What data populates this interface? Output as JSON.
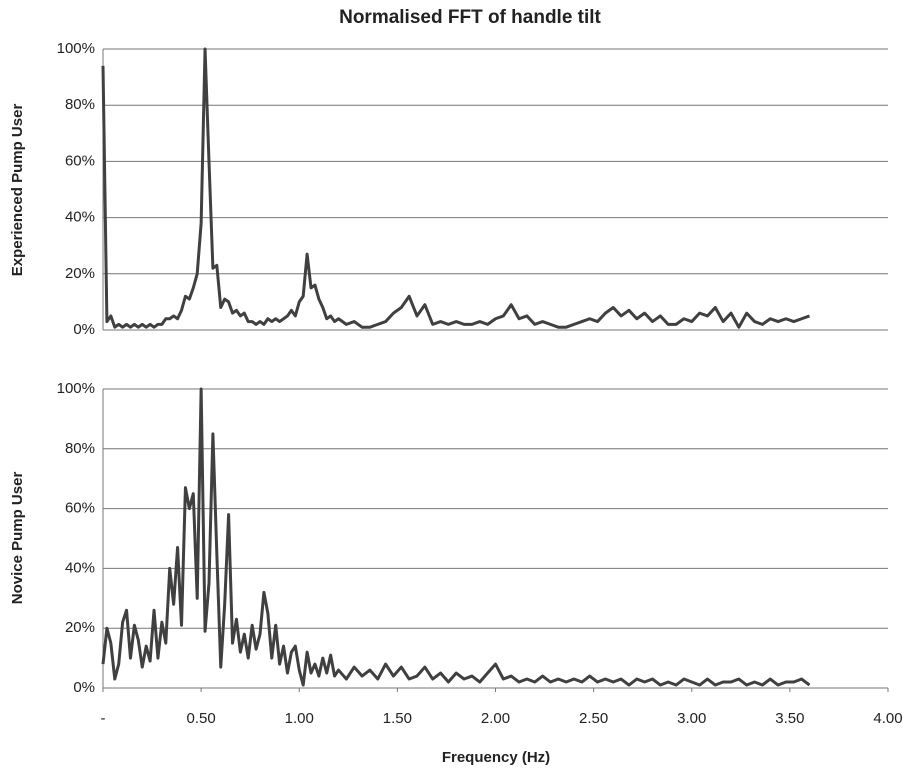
{
  "chart_data": [
    {
      "type": "line",
      "title": "Normalised FFT of handle tilt",
      "y_label": "Experienced Pump User",
      "color": "#404040",
      "grid": true,
      "xlim": [
        0,
        4
      ],
      "ylim": [
        0,
        100
      ],
      "yticks": [
        {
          "value": 0,
          "label": "0%"
        },
        {
          "value": 20,
          "label": "20%"
        },
        {
          "value": 40,
          "label": "40%"
        },
        {
          "value": 60,
          "label": "60%"
        },
        {
          "value": 80,
          "label": "80%"
        },
        {
          "value": 100,
          "label": "100%"
        }
      ],
      "x": [
        0,
        0.02,
        0.04,
        0.06,
        0.08,
        0.1,
        0.12,
        0.14,
        0.16,
        0.18,
        0.2,
        0.22,
        0.24,
        0.26,
        0.28,
        0.3,
        0.32,
        0.34,
        0.36,
        0.38,
        0.4,
        0.42,
        0.44,
        0.46,
        0.48,
        0.5,
        0.52,
        0.54,
        0.56,
        0.58,
        0.6,
        0.62,
        0.64,
        0.66,
        0.68,
        0.7,
        0.72,
        0.74,
        0.76,
        0.78,
        0.8,
        0.82,
        0.84,
        0.86,
        0.88,
        0.9,
        0.92,
        0.94,
        0.96,
        0.98,
        1.0,
        1.02,
        1.04,
        1.06,
        1.08,
        1.1,
        1.12,
        1.14,
        1.16,
        1.18,
        1.2,
        1.24,
        1.28,
        1.32,
        1.36,
        1.4,
        1.44,
        1.48,
        1.52,
        1.56,
        1.6,
        1.64,
        1.68,
        1.72,
        1.76,
        1.8,
        1.84,
        1.88,
        1.92,
        1.96,
        2.0,
        2.04,
        2.08,
        2.12,
        2.16,
        2.2,
        2.24,
        2.28,
        2.32,
        2.36,
        2.4,
        2.44,
        2.48,
        2.52,
        2.56,
        2.6,
        2.64,
        2.68,
        2.72,
        2.76,
        2.8,
        2.84,
        2.88,
        2.92,
        2.96,
        3.0,
        3.04,
        3.08,
        3.12,
        3.16,
        3.2,
        3.24,
        3.28,
        3.32,
        3.36,
        3.4,
        3.44,
        3.48,
        3.52,
        3.56,
        3.6
      ],
      "values": [
        94,
        3,
        5,
        1,
        2,
        1,
        2,
        1,
        2,
        1,
        2,
        1,
        2,
        1,
        2,
        2,
        4,
        4,
        5,
        4,
        7,
        12,
        11,
        15,
        20,
        38,
        100,
        60,
        22,
        23,
        8,
        11,
        10,
        6,
        7,
        5,
        6,
        3,
        3,
        2,
        3,
        2,
        4,
        3,
        4,
        3,
        4,
        5,
        7,
        5,
        10,
        12,
        27,
        15,
        16,
        11,
        8,
        4,
        5,
        3,
        4,
        2,
        3,
        1,
        1,
        2,
        3,
        6,
        8,
        12,
        5,
        9,
        2,
        3,
        2,
        3,
        2,
        2,
        3,
        2,
        4,
        5,
        9,
        4,
        5,
        2,
        3,
        2,
        1,
        1,
        2,
        3,
        4,
        3,
        6,
        8,
        5,
        7,
        4,
        6,
        3,
        5,
        2,
        2,
        4,
        3,
        6,
        5,
        8,
        3,
        6,
        1,
        6,
        3,
        2,
        4,
        3,
        4,
        3,
        4,
        5
      ]
    },
    {
      "type": "line",
      "y_label": "Novice Pump User",
      "x_label": "Frequency (Hz)",
      "color": "#404040",
      "grid": true,
      "xlim": [
        0,
        4
      ],
      "ylim": [
        0,
        100
      ],
      "xticks": [
        {
          "value": 0,
          "label": "-"
        },
        {
          "value": 0.5,
          "label": "0.50"
        },
        {
          "value": 1,
          "label": "1.00"
        },
        {
          "value": 1.5,
          "label": "1.50"
        },
        {
          "value": 2,
          "label": "2.00"
        },
        {
          "value": 2.5,
          "label": "2.50"
        },
        {
          "value": 3,
          "label": "3.00"
        },
        {
          "value": 3.5,
          "label": "3.50"
        },
        {
          "value": 4,
          "label": "4.00"
        }
      ],
      "yticks": [
        {
          "value": 0,
          "label": "0%"
        },
        {
          "value": 20,
          "label": "20%"
        },
        {
          "value": 40,
          "label": "40%"
        },
        {
          "value": 60,
          "label": "60%"
        },
        {
          "value": 80,
          "label": "80%"
        },
        {
          "value": 100,
          "label": "100%"
        }
      ],
      "x": [
        0,
        0.02,
        0.04,
        0.06,
        0.08,
        0.1,
        0.12,
        0.14,
        0.16,
        0.18,
        0.2,
        0.22,
        0.24,
        0.26,
        0.28,
        0.3,
        0.32,
        0.34,
        0.36,
        0.38,
        0.4,
        0.42,
        0.44,
        0.46,
        0.48,
        0.5,
        0.52,
        0.54,
        0.56,
        0.58,
        0.6,
        0.62,
        0.64,
        0.66,
        0.68,
        0.7,
        0.72,
        0.74,
        0.76,
        0.78,
        0.8,
        0.82,
        0.84,
        0.86,
        0.88,
        0.9,
        0.92,
        0.94,
        0.96,
        0.98,
        1.0,
        1.02,
        1.04,
        1.06,
        1.08,
        1.1,
        1.12,
        1.14,
        1.16,
        1.18,
        1.2,
        1.24,
        1.28,
        1.32,
        1.36,
        1.4,
        1.44,
        1.48,
        1.52,
        1.56,
        1.6,
        1.64,
        1.68,
        1.72,
        1.76,
        1.8,
        1.84,
        1.88,
        1.92,
        1.96,
        2.0,
        2.04,
        2.08,
        2.12,
        2.16,
        2.2,
        2.24,
        2.28,
        2.32,
        2.36,
        2.4,
        2.44,
        2.48,
        2.52,
        2.56,
        2.6,
        2.64,
        2.68,
        2.72,
        2.76,
        2.8,
        2.84,
        2.88,
        2.92,
        2.96,
        3.0,
        3.04,
        3.08,
        3.12,
        3.16,
        3.2,
        3.24,
        3.28,
        3.32,
        3.36,
        3.4,
        3.44,
        3.48,
        3.52,
        3.56,
        3.6
      ],
      "values": [
        8,
        20,
        15,
        3,
        8,
        22,
        26,
        10,
        21,
        16,
        7,
        14,
        9,
        26,
        10,
        22,
        15,
        40,
        28,
        47,
        21,
        67,
        60,
        65,
        30,
        100,
        19,
        35,
        85,
        45,
        7,
        28,
        58,
        15,
        23,
        12,
        18,
        10,
        21,
        13,
        18,
        32,
        25,
        10,
        21,
        8,
        14,
        5,
        12,
        14,
        6,
        1,
        12,
        5,
        8,
        4,
        10,
        5,
        11,
        4,
        6,
        3,
        7,
        4,
        6,
        3,
        8,
        4,
        7,
        3,
        4,
        7,
        3,
        5,
        2,
        5,
        3,
        4,
        2,
        5,
        8,
        3,
        4,
        2,
        3,
        2,
        4,
        2,
        3,
        2,
        3,
        2,
        4,
        2,
        3,
        2,
        3,
        1,
        3,
        2,
        3,
        1,
        2,
        1,
        3,
        2,
        1,
        3,
        1,
        2,
        2,
        3,
        1,
        2,
        1,
        3,
        1,
        2,
        2,
        3,
        1
      ]
    }
  ]
}
